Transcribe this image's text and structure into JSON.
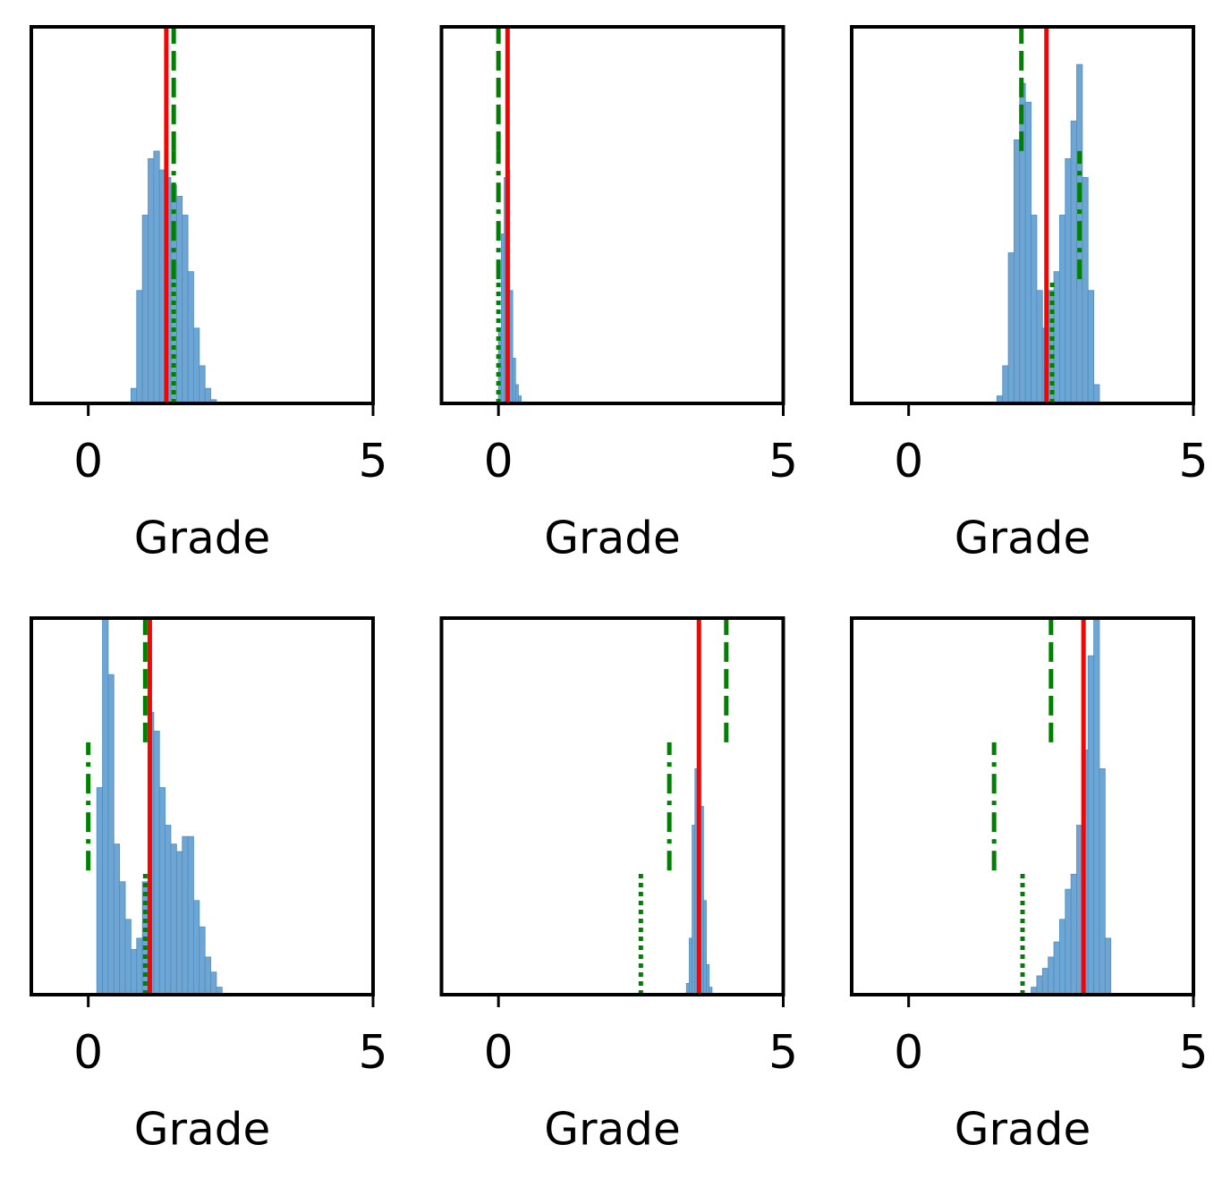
{
  "chart_data": [
    {
      "type": "histogram",
      "xlabel": "Grade",
      "xlim": [
        -1,
        5
      ],
      "xticks": [
        0,
        5
      ],
      "ylim": [
        0,
        1
      ],
      "color": "#6fa5d2",
      "bins": [
        0.75,
        0.85,
        0.95,
        1.05,
        1.15,
        1.25,
        1.35,
        1.45,
        1.55,
        1.65,
        1.75,
        1.85,
        1.95,
        2.05,
        2.15,
        2.25
      ],
      "counts": [
        0.04,
        0.3,
        0.5,
        0.65,
        0.67,
        0.62,
        0.6,
        0.58,
        0.55,
        0.5,
        0.35,
        0.2,
        0.1,
        0.04,
        0.01
      ],
      "vlines": [
        {
          "x": 1.37,
          "style": "solid",
          "color": "red",
          "ymin": 0,
          "ymax": 1
        },
        {
          "x": 1.5,
          "style": "dotted",
          "color": "green",
          "ymin": 0,
          "ymax": 0.33
        },
        {
          "x": 1.5,
          "style": "dashdot",
          "color": "green",
          "ymin": 0.33,
          "ymax": 0.67
        },
        {
          "x": 1.5,
          "style": "dashed",
          "color": "green",
          "ymin": 0.67,
          "ymax": 1
        }
      ]
    },
    {
      "type": "histogram",
      "xlabel": "Grade",
      "xlim": [
        -1,
        5
      ],
      "xticks": [
        0,
        5
      ],
      "ylim": [
        0,
        1
      ],
      "color": "#6fa5d2",
      "bins": [
        0,
        0.05,
        0.1,
        0.15,
        0.2,
        0.25,
        0.3,
        0.35,
        0.4
      ],
      "counts": [
        0.2,
        0.45,
        0.6,
        0.62,
        0.3,
        0.12,
        0.05,
        0.02
      ],
      "vlines": [
        {
          "x": 0.16,
          "style": "solid",
          "color": "red",
          "ymin": 0,
          "ymax": 1
        },
        {
          "x": 0,
          "style": "dotted",
          "color": "green",
          "ymin": 0,
          "ymax": 0.33
        },
        {
          "x": 0,
          "style": "dashdot",
          "color": "green",
          "ymin": 0.33,
          "ymax": 0.67
        },
        {
          "x": 0,
          "style": "dashed",
          "color": "green",
          "ymin": 0.67,
          "ymax": 1
        }
      ]
    },
    {
      "type": "histogram",
      "xlabel": "Grade",
      "xlim": [
        -1,
        5
      ],
      "xticks": [
        0,
        5
      ],
      "ylim": [
        0,
        1
      ],
      "color": "#6fa5d2",
      "bins": [
        1.55,
        1.65,
        1.75,
        1.85,
        1.95,
        2.05,
        2.15,
        2.25,
        2.35,
        2.45,
        2.55,
        2.65,
        2.75,
        2.85,
        2.95,
        3.05,
        3.15,
        3.25,
        3.35
      ],
      "counts": [
        0.02,
        0.1,
        0.4,
        0.7,
        0.85,
        0.8,
        0.5,
        0.3,
        0.2,
        0.3,
        0.35,
        0.5,
        0.65,
        0.75,
        0.9,
        0.6,
        0.3,
        0.05
      ],
      "vlines": [
        {
          "x": 2.42,
          "style": "solid",
          "color": "red",
          "ymin": 0,
          "ymax": 1
        },
        {
          "x": 2.52,
          "style": "dotted",
          "color": "green",
          "ymin": 0,
          "ymax": 0.33
        },
        {
          "x": 3.0,
          "style": "dashdot",
          "color": "green",
          "ymin": 0.33,
          "ymax": 0.67
        },
        {
          "x": 1.98,
          "style": "dashed",
          "color": "green",
          "ymin": 0.67,
          "ymax": 1
        }
      ]
    },
    {
      "type": "histogram",
      "xlabel": "Grade",
      "xlim": [
        -1,
        5
      ],
      "xticks": [
        0,
        5
      ],
      "ylim": [
        0,
        1
      ],
      "color": "#6fa5d2",
      "bins": [
        0.15,
        0.25,
        0.35,
        0.45,
        0.55,
        0.65,
        0.75,
        0.85,
        0.95,
        1.05,
        1.15,
        1.25,
        1.35,
        1.45,
        1.55,
        1.65,
        1.75,
        1.85,
        1.95,
        2.05,
        2.15,
        2.25,
        2.35
      ],
      "counts": [
        0.55,
        1.0,
        0.85,
        0.4,
        0.3,
        0.2,
        0.12,
        0.15,
        0.3,
        0.75,
        0.7,
        0.55,
        0.45,
        0.4,
        0.38,
        0.42,
        0.42,
        0.25,
        0.18,
        0.1,
        0.06,
        0.02
      ],
      "vlines": [
        {
          "x": 1.08,
          "style": "solid",
          "color": "red",
          "ymin": 0,
          "ymax": 1
        },
        {
          "x": 1.0,
          "style": "dotted",
          "color": "green",
          "ymin": 0,
          "ymax": 0.33
        },
        {
          "x": 0,
          "style": "dashdot",
          "color": "green",
          "ymin": 0.33,
          "ymax": 0.67
        },
        {
          "x": 1.0,
          "style": "dashed",
          "color": "green",
          "ymin": 0.67,
          "ymax": 1
        }
      ]
    },
    {
      "type": "histogram",
      "xlabel": "Grade",
      "xlim": [
        -1,
        5
      ],
      "xticks": [
        0,
        5
      ],
      "ylim": [
        0,
        1
      ],
      "color": "#6fa5d2",
      "bins": [
        3.3,
        3.35,
        3.4,
        3.45,
        3.5,
        3.55,
        3.6,
        3.65,
        3.7,
        3.75
      ],
      "counts": [
        0.03,
        0.15,
        0.45,
        0.6,
        0.62,
        0.5,
        0.25,
        0.08,
        0.02
      ],
      "vlines": [
        {
          "x": 3.52,
          "style": "solid",
          "color": "red",
          "ymin": 0,
          "ymax": 1
        },
        {
          "x": 2.5,
          "style": "dotted",
          "color": "green",
          "ymin": 0,
          "ymax": 0.33
        },
        {
          "x": 3.0,
          "style": "dashdot",
          "color": "green",
          "ymin": 0.33,
          "ymax": 0.67
        },
        {
          "x": 4.0,
          "style": "dashed",
          "color": "green",
          "ymin": 0.67,
          "ymax": 1
        }
      ]
    },
    {
      "type": "histogram",
      "xlabel": "Grade",
      "xlim": [
        -1,
        5
      ],
      "xticks": [
        0,
        5
      ],
      "ylim": [
        0,
        1
      ],
      "color": "#6fa5d2",
      "bins": [
        2.15,
        2.25,
        2.35,
        2.45,
        2.55,
        2.65,
        2.75,
        2.85,
        2.95,
        3.05,
        3.15,
        3.25,
        3.35,
        3.45,
        3.55
      ],
      "counts": [
        0.02,
        0.05,
        0.07,
        0.1,
        0.14,
        0.2,
        0.28,
        0.32,
        0.45,
        0.65,
        0.9,
        1.0,
        0.6,
        0.15
      ],
      "vlines": [
        {
          "x": 3.07,
          "style": "solid",
          "color": "red",
          "ymin": 0,
          "ymax": 1
        },
        {
          "x": 2.0,
          "style": "dotted",
          "color": "green",
          "ymin": 0,
          "ymax": 0.33
        },
        {
          "x": 1.5,
          "style": "dashdot",
          "color": "green",
          "ymin": 0.33,
          "ymax": 0.67
        },
        {
          "x": 2.5,
          "style": "dashed",
          "color": "green",
          "ymin": 0.67,
          "ymax": 1
        }
      ]
    }
  ]
}
